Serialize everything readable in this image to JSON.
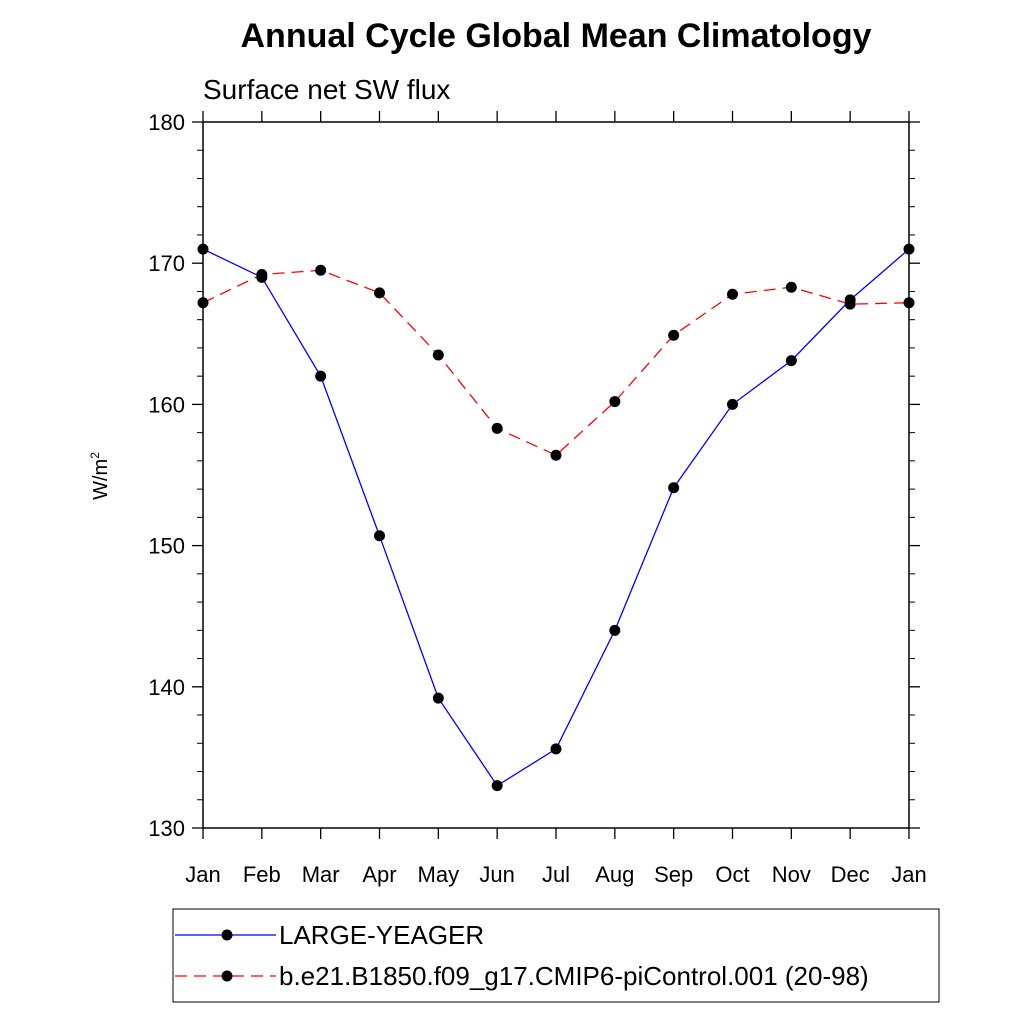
{
  "chart_data": {
    "type": "line",
    "title": "Annual Cycle Global Mean Climatology",
    "subtitle": "Surface net SW flux",
    "ylabel_base": "W/m",
    "ylabel_sup": "2",
    "xlabel": "",
    "categories": [
      "Jan",
      "Feb",
      "Mar",
      "Apr",
      "May",
      "Jun",
      "Jul",
      "Aug",
      "Sep",
      "Oct",
      "Nov",
      "Dec",
      "Jan"
    ],
    "ylim": [
      130,
      180
    ],
    "yticks": [
      130,
      140,
      150,
      160,
      170,
      180
    ],
    "yticks_minor_step": 2,
    "grid": false,
    "legend_position": "bottom",
    "series": [
      {
        "name": "LARGE-YEAGER",
        "color": "#0000ff",
        "dash": "solid",
        "marker": "filled-circle",
        "values": [
          171.0,
          169.0,
          162.0,
          150.7,
          139.2,
          133.0,
          135.6,
          144.0,
          154.1,
          160.0,
          163.1,
          167.4,
          171.0
        ]
      },
      {
        "name": "b.e21.B1850.f09_g17.CMIP6-piControl.001 (20-98)",
        "color": "#ff0000",
        "dash": "dashed",
        "marker": "filled-circle",
        "values": [
          167.2,
          169.2,
          169.5,
          167.9,
          163.5,
          158.3,
          156.4,
          160.2,
          164.9,
          167.8,
          168.3,
          167.1,
          167.2
        ]
      }
    ]
  }
}
